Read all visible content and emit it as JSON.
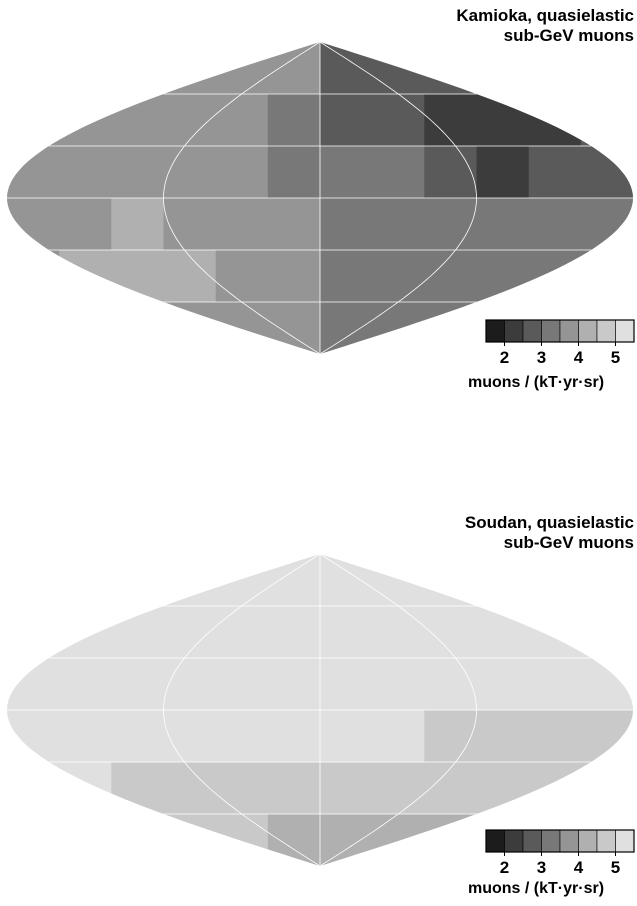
{
  "chart_data": [
    {
      "type": "heatmap",
      "projection": "sinusoidal (equal-area) sky map",
      "title": [
        "Kamioka, quasielastic",
        "sub-GeV muons"
      ],
      "colorbar": {
        "min": 1.5,
        "max": 5.5,
        "bins": 8,
        "ticks": [
          "2",
          "3",
          "4",
          "5"
        ],
        "label": "muons / (kT·yr·sr)"
      },
      "grid": true,
      "rows": 6,
      "cols": 12,
      "values": [
        [
          3.5,
          3.5,
          3.5,
          3.5,
          3.5,
          3.5,
          2.5,
          2.5,
          2.5,
          2.5,
          2.5,
          2.5
        ],
        [
          3.5,
          3.5,
          3.5,
          3.5,
          3.5,
          3.0,
          2.5,
          2.5,
          2.0,
          2.0,
          2.0,
          2.5
        ],
        [
          3.5,
          3.5,
          3.5,
          3.5,
          3.5,
          3.0,
          3.0,
          3.0,
          2.5,
          2.0,
          2.5,
          2.5
        ],
        [
          3.5,
          3.5,
          4.0,
          3.5,
          3.5,
          3.5,
          3.0,
          3.0,
          3.0,
          3.0,
          3.0,
          3.0
        ],
        [
          3.5,
          4.0,
          4.0,
          4.0,
          3.5,
          3.5,
          3.0,
          3.0,
          3.0,
          3.0,
          3.0,
          3.0
        ],
        [
          3.5,
          3.5,
          4.0,
          3.5,
          3.5,
          3.5,
          3.0,
          3.0,
          3.0,
          3.0,
          3.0,
          3.0
        ]
      ]
    },
    {
      "type": "heatmap",
      "projection": "sinusoidal (equal-area) sky map",
      "title": [
        "Soudan, quasielastic",
        "sub-GeV muons"
      ],
      "colorbar": {
        "min": 1.5,
        "max": 5.5,
        "bins": 8,
        "ticks": [
          "2",
          "3",
          "4",
          "5"
        ],
        "label": "muons / (kT·yr·sr)"
      },
      "grid": true,
      "rows": 6,
      "cols": 12,
      "values": [
        [
          5.5,
          5.5,
          5.5,
          5.5,
          5.5,
          5.5,
          5.5,
          5.5,
          5.5,
          5.5,
          5.5,
          5.5
        ],
        [
          5.5,
          5.5,
          5.5,
          5.5,
          5.5,
          5.5,
          5.5,
          5.5,
          5.5,
          5.5,
          5.5,
          5.5
        ],
        [
          5.5,
          5.5,
          5.5,
          5.5,
          5.5,
          5.0,
          5.0,
          5.0,
          5.0,
          5.0,
          5.5,
          5.5
        ],
        [
          5.0,
          5.0,
          5.5,
          5.0,
          5.0,
          5.0,
          5.0,
          5.0,
          4.5,
          4.5,
          4.5,
          4.5
        ],
        [
          5.0,
          5.0,
          4.5,
          4.5,
          4.5,
          4.5,
          4.5,
          4.5,
          4.5,
          4.5,
          4.5,
          4.5
        ],
        [
          4.5,
          4.5,
          4.5,
          4.5,
          4.5,
          4.0,
          4.0,
          4.0,
          4.0,
          4.5,
          4.5,
          4.5
        ]
      ]
    }
  ]
}
